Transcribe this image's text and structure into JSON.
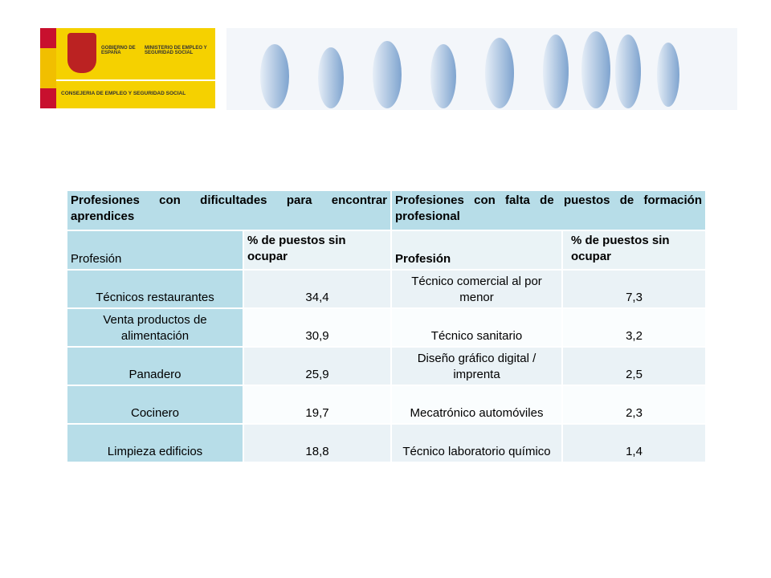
{
  "header": {
    "gobierno": "GOBIERNO DE ESPAÑA",
    "ministerio": "MINISTERIO DE EMPLEO Y SEGURIDAD SOCIAL",
    "consejeria": "CONSEJERIA DE EMPLEO Y SEGURIDAD SOCIAL"
  },
  "table": {
    "groups": [
      "Profesiones con dificultades para encontrar aprendices",
      "Profesiones con falta de puestos de formación profesional"
    ],
    "columns": [
      "Profesión",
      "% de puestos sin ocupar",
      "Profesión",
      "% de puestos sin ocupar"
    ],
    "rows": [
      [
        "Técnicos restaurantes",
        "34,4",
        "Técnico comercial al por menor",
        "7,3"
      ],
      [
        "Venta productos de alimentación",
        "30,9",
        "Técnico sanitario",
        "3,2"
      ],
      [
        "Panadero",
        "25,9",
        "Diseño gráfico digital / imprenta",
        "2,5"
      ],
      [
        "Cocinero",
        "19,7",
        "Mecatrónico automóviles",
        "2,3"
      ],
      [
        "Limpieza edificios",
        "18,8",
        "Técnico laboratorio químico",
        "1,4"
      ]
    ]
  }
}
